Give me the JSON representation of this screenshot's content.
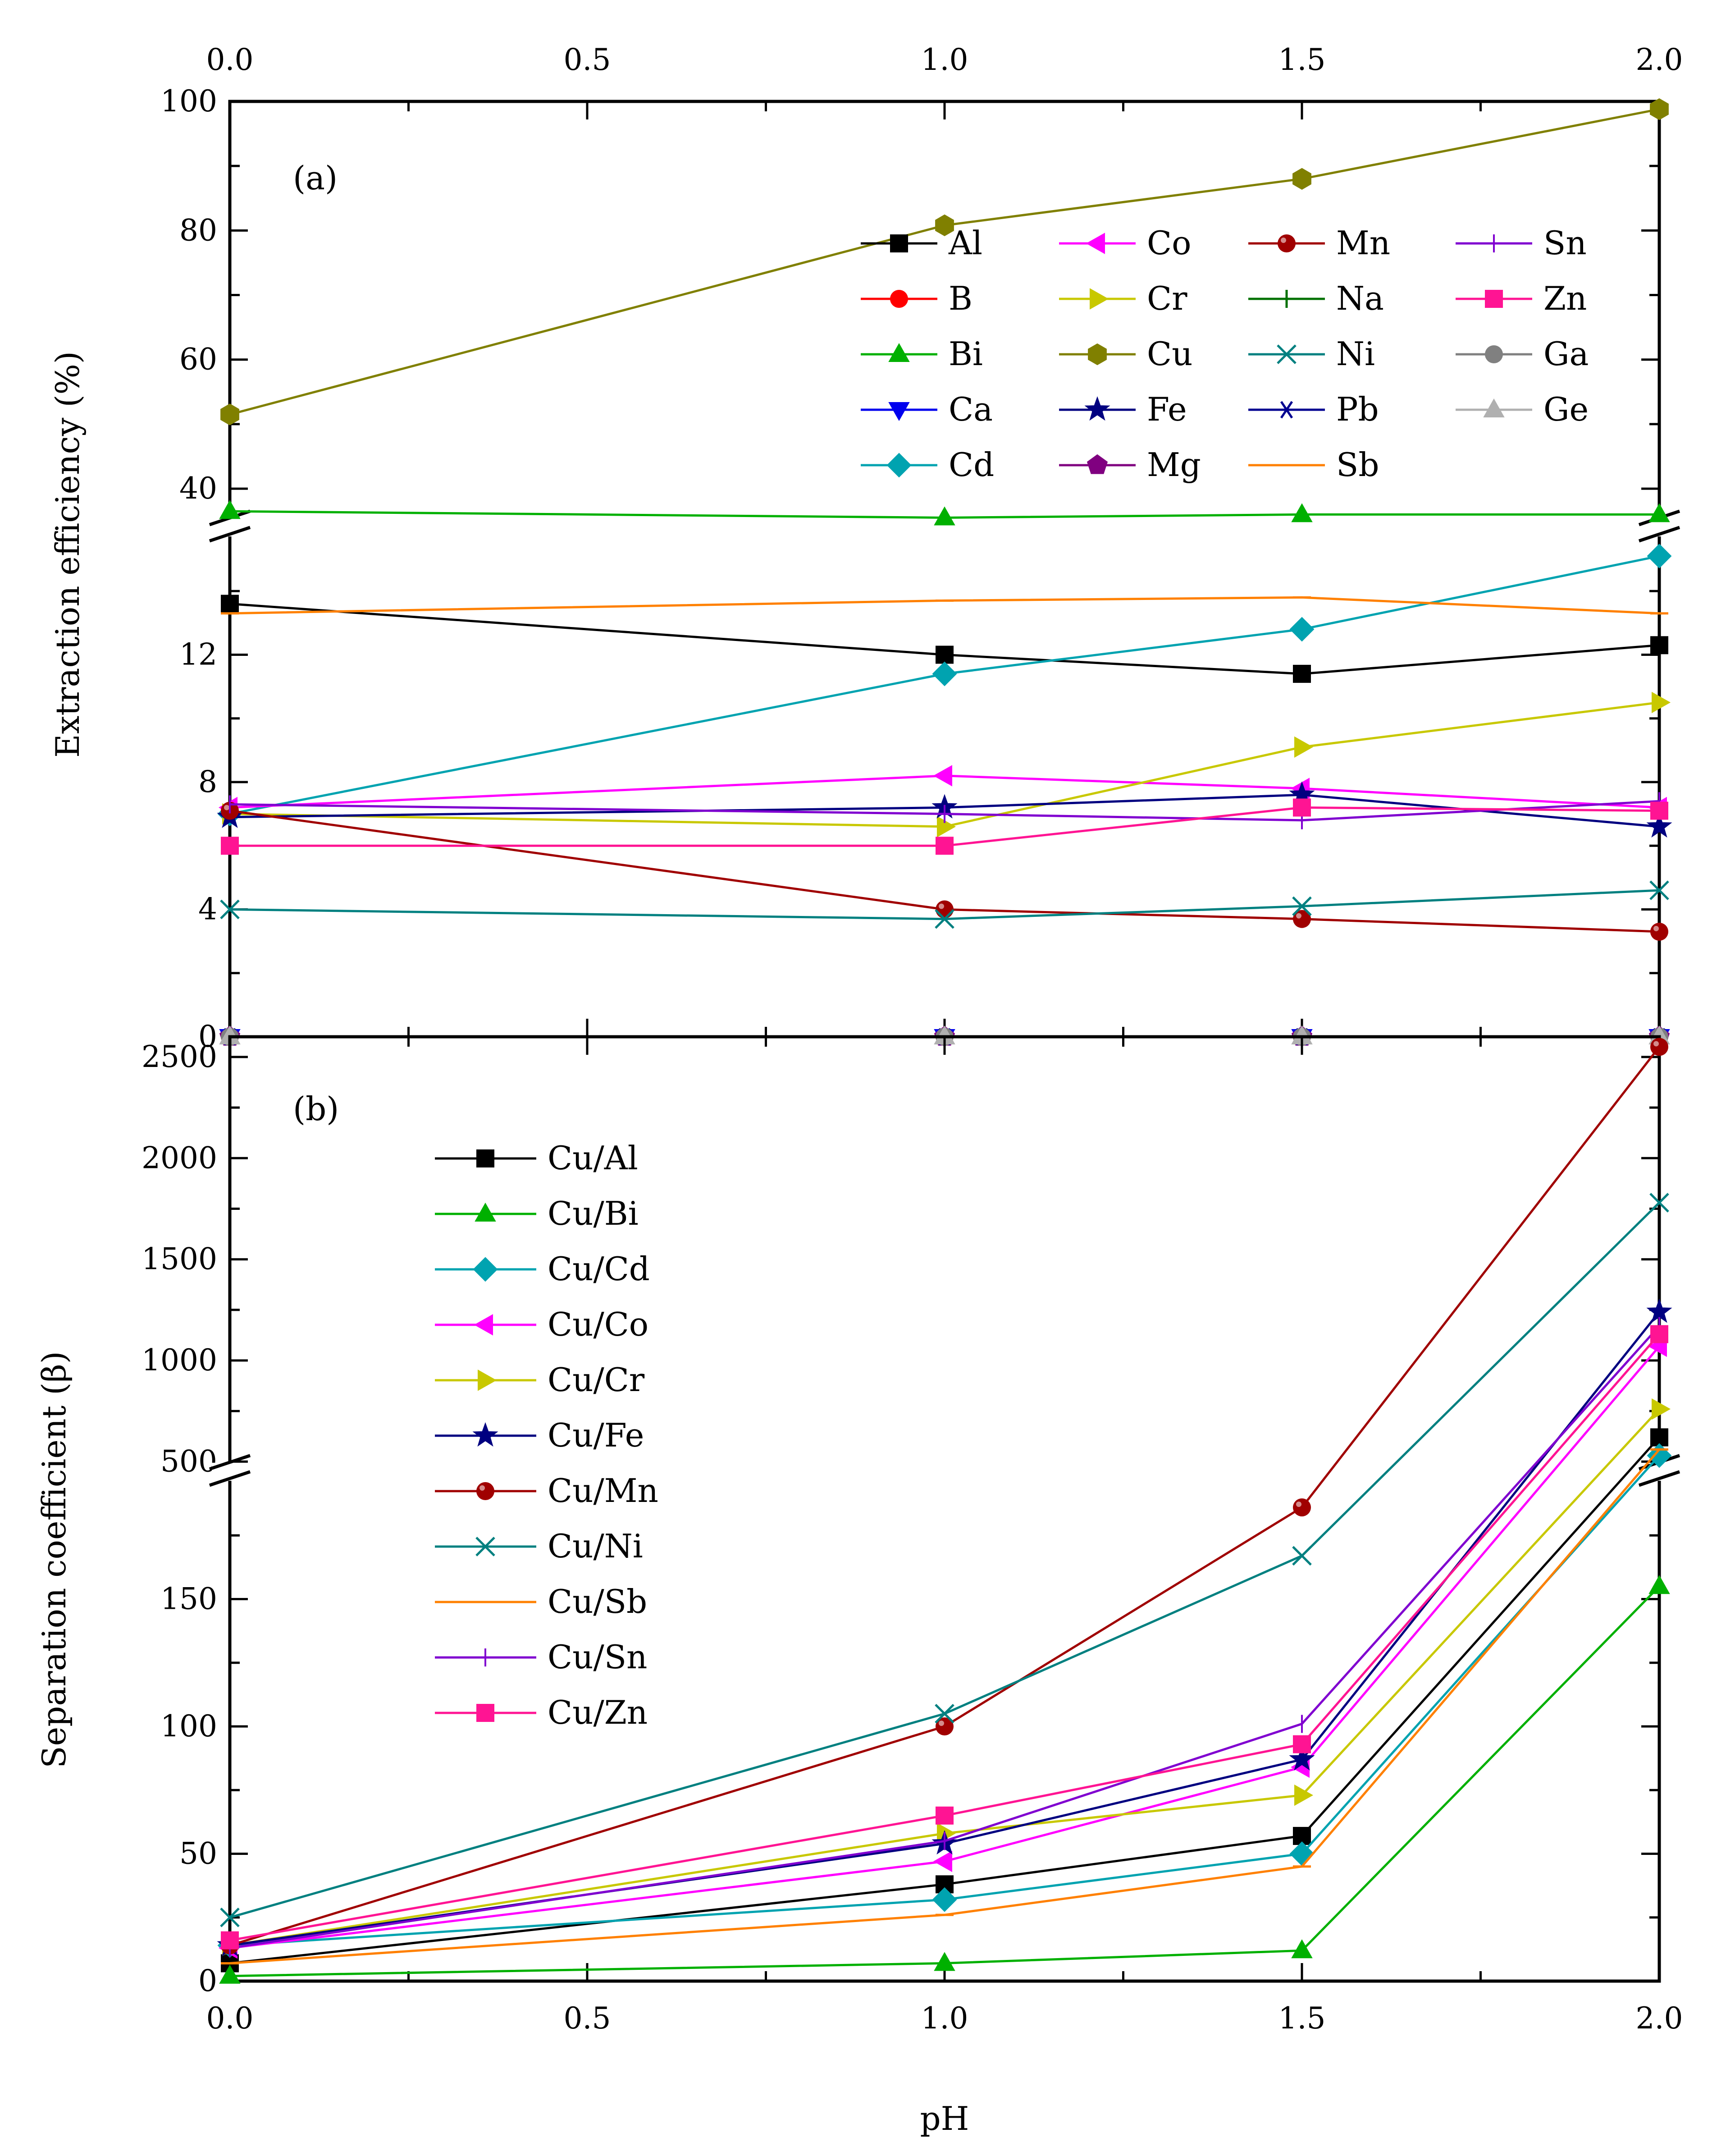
{
  "colors": {
    "Al": "#000000",
    "B": "#ff0000",
    "Bi": "#00b000",
    "Ca": "#0000ee",
    "Cd": "#00a3b0",
    "Co": "#ff00ff",
    "Cr": "#c8c800",
    "Cu": "#808000",
    "Fe": "#000080",
    "Mg": "#800080",
    "Mn": "#a00000",
    "Na": "#007000",
    "Ni": "#008080",
    "Pb": "#000090",
    "Sb": "#ff8000",
    "Sn": "#8000d0",
    "Zn": "#ff1493",
    "Ga": "#808080",
    "Ge": "#b0b0b0"
  },
  "chart_data": [
    {
      "panel": "(a)",
      "type": "line",
      "ylabel": "Extraction efficiency (%)",
      "x": [
        0.0,
        1.0,
        1.5,
        2.0
      ],
      "xticks": [
        "0.0",
        "0.5",
        "1.0",
        "1.5",
        "2.0"
      ],
      "xlim": [
        0,
        2
      ],
      "broken_axis": {
        "lower": [
          0,
          16
        ],
        "upper": [
          34,
          100
        ]
      },
      "yticks_lower": [
        "0",
        "4",
        "8",
        "12"
      ],
      "yticks_upper": [
        "40",
        "60",
        "80",
        "100"
      ],
      "legend_columns": [
        [
          "Al",
          "B",
          "Bi",
          "Ca",
          "Cd"
        ],
        [
          "Co",
          "Cr",
          "Cu",
          "Fe",
          "Mg"
        ],
        [
          "Mn",
          "Na",
          "Ni",
          "Pb",
          "Sb"
        ],
        [
          "Sn",
          "Zn",
          "Ga",
          "Ge"
        ]
      ],
      "series": [
        {
          "name": "Al",
          "marker": "square",
          "values": [
            13.6,
            12.0,
            11.4,
            12.3
          ]
        },
        {
          "name": "B",
          "marker": "circle",
          "values": [
            0,
            0,
            0,
            0
          ]
        },
        {
          "name": "Bi",
          "marker": "triangle-up",
          "values": [
            36.5,
            35.5,
            36.0,
            36.0
          ]
        },
        {
          "name": "Ca",
          "marker": "triangle-down",
          "values": [
            0,
            0,
            0,
            0
          ]
        },
        {
          "name": "Cd",
          "marker": "diamond",
          "values": [
            7.0,
            11.4,
            12.8,
            15.1
          ]
        },
        {
          "name": "Co",
          "marker": "triangle-left",
          "values": [
            7.2,
            8.2,
            7.8,
            7.2
          ]
        },
        {
          "name": "Cr",
          "marker": "triangle-right",
          "values": [
            7.0,
            6.6,
            9.1,
            10.5
          ]
        },
        {
          "name": "Cu",
          "marker": "hexagon",
          "values": [
            51.5,
            80.8,
            88.0,
            98.8
          ]
        },
        {
          "name": "Fe",
          "marker": "star",
          "values": [
            6.9,
            7.2,
            7.6,
            6.6
          ]
        },
        {
          "name": "Mg",
          "marker": "pentagon",
          "values": [
            0,
            0,
            0,
            0
          ]
        },
        {
          "name": "Mn",
          "marker": "sphere",
          "values": [
            7.1,
            4.0,
            3.7,
            3.3
          ]
        },
        {
          "name": "Na",
          "marker": "plus",
          "values": [
            0,
            0,
            0,
            0
          ]
        },
        {
          "name": "Ni",
          "marker": "x",
          "values": [
            4.0,
            3.7,
            4.1,
            4.6
          ]
        },
        {
          "name": "Pb",
          "marker": "asterisk",
          "values": [
            0,
            0,
            0,
            0
          ]
        },
        {
          "name": "Sb",
          "marker": "dash",
          "values": [
            13.3,
            13.7,
            13.8,
            13.3
          ]
        },
        {
          "name": "Sn",
          "marker": "vbar",
          "values": [
            7.3,
            7.0,
            6.8,
            7.4
          ]
        },
        {
          "name": "Zn",
          "marker": "square",
          "values": [
            6.0,
            6.0,
            7.2,
            7.1
          ]
        },
        {
          "name": "Ga",
          "marker": "circle",
          "values": [
            0,
            0,
            0,
            0
          ]
        },
        {
          "name": "Ge",
          "marker": "triangle-up",
          "values": [
            0,
            0,
            0,
            0
          ]
        }
      ]
    },
    {
      "panel": "(b)",
      "type": "line",
      "ylabel": "Separation coefficient (β)",
      "xlabel": "pH",
      "x": [
        0.0,
        1.0,
        1.5,
        2.0
      ],
      "xticks": [
        "0.0",
        "0.5",
        "1.0",
        "1.5",
        "2.0"
      ],
      "xlim": [
        0,
        2
      ],
      "broken_axis": {
        "lower": [
          0,
          200
        ],
        "upper": [
          450,
          2600
        ]
      },
      "yticks_lower": [
        "0",
        "50",
        "100",
        "150"
      ],
      "yticks_upper": [
        "500",
        "1000",
        "1500",
        "2000",
        "2500"
      ],
      "legend_columns": [
        [
          "Cu/Al",
          "Cu/Bi",
          "Cu/Cd",
          "Cu/Co",
          "Cu/Cr",
          "Cu/Fe",
          "Cu/Mn",
          "Cu/Ni",
          "Cu/Sb",
          "Cu/Sn",
          "Cu/Zn"
        ]
      ],
      "series": [
        {
          "name": "Cu/Al",
          "element": "Al",
          "marker": "square",
          "values": [
            7,
            38,
            57,
            620
          ]
        },
        {
          "name": "Cu/Bi",
          "element": "Bi",
          "marker": "triangle-up",
          "values": [
            2,
            7,
            12,
            155
          ]
        },
        {
          "name": "Cu/Cd",
          "element": "Cd",
          "marker": "diamond",
          "values": [
            14,
            32,
            50,
            530
          ]
        },
        {
          "name": "Cu/Co",
          "element": "Co",
          "marker": "triangle-left",
          "values": [
            13,
            47,
            84,
            1070
          ]
        },
        {
          "name": "Cu/Cr",
          "element": "Cr",
          "marker": "triangle-right",
          "values": [
            14,
            58,
            73,
            760
          ]
        },
        {
          "name": "Cu/Fe",
          "element": "Fe",
          "marker": "star",
          "values": [
            14,
            54,
            87,
            1240
          ]
        },
        {
          "name": "Cu/Mn",
          "element": "Mn",
          "marker": "sphere",
          "values": [
            14,
            100,
            186,
            2550
          ]
        },
        {
          "name": "Cu/Ni",
          "element": "Ni",
          "marker": "x",
          "values": [
            25,
            105,
            167,
            1780
          ]
        },
        {
          "name": "Cu/Sb",
          "element": "Sb",
          "marker": "dash",
          "values": [
            7,
            26,
            45,
            560
          ]
        },
        {
          "name": "Cu/Sn",
          "element": "Sn",
          "marker": "vbar",
          "values": [
            13,
            55,
            101,
            1170
          ]
        },
        {
          "name": "Cu/Zn",
          "element": "Zn",
          "marker": "square",
          "values": [
            16,
            65,
            93,
            1130
          ]
        }
      ]
    }
  ]
}
